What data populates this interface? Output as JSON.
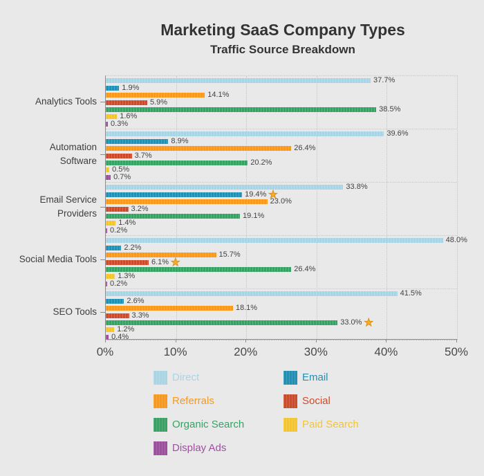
{
  "chart_data": {
    "type": "bar",
    "orientation": "horizontal",
    "title": "Marketing SaaS Company Types",
    "subtitle": "Traffic Source Breakdown",
    "xlim": [
      0,
      50
    ],
    "xmax": 50,
    "x_tick_labels": [
      "0%",
      "10%",
      "20%",
      "30%",
      "40%",
      "50%"
    ],
    "grid": "dotted",
    "legend_position": "bottom",
    "star_glyph": "★",
    "star_color": "#f4b223",
    "background_color": "#e9e9e9",
    "axis_color": "#8c8c8c",
    "series": [
      {
        "name": "Direct",
        "color": "#a9d4e4"
      },
      {
        "name": "Email",
        "color": "#2190b4"
      },
      {
        "name": "Referrals",
        "color": "#f8981d"
      },
      {
        "name": "Social",
        "color": "#cd4b2d"
      },
      {
        "name": "Organic Search",
        "color": "#38a164"
      },
      {
        "name": "Paid Search",
        "color": "#f4c52c"
      },
      {
        "name": "Display Ads",
        "color": "#9c4f9f"
      }
    ],
    "groups": [
      {
        "label": "Analytics Tools",
        "values": [
          37.7,
          1.9,
          14.1,
          5.9,
          38.5,
          1.6,
          0.3
        ],
        "labels": [
          "37.7%",
          "1.9%",
          "14.1%",
          "5.9%",
          "38.5%",
          "1.6%",
          "0.3%"
        ],
        "starred": []
      },
      {
        "label": "Automation\nSoftware",
        "values": [
          39.6,
          8.9,
          26.4,
          3.7,
          20.2,
          0.5,
          0.7
        ],
        "labels": [
          "39.6%",
          "8.9%",
          "26.4%",
          "3.7%",
          "20.2%",
          "0.5%",
          "0.7%"
        ],
        "starred": []
      },
      {
        "label": "Email Service\nProviders",
        "values": [
          33.8,
          19.4,
          23.0,
          3.2,
          19.1,
          1.4,
          0.2
        ],
        "labels": [
          "33.8%",
          "19.4%",
          "23.0%",
          "3.2%",
          "19.1%",
          "1.4%",
          "0.2%"
        ],
        "starred": [
          1
        ]
      },
      {
        "label": "Social Media Tools",
        "values": [
          48.0,
          2.2,
          15.7,
          6.1,
          26.4,
          1.3,
          0.2
        ],
        "labels": [
          "48.0%",
          "2.2%",
          "15.7%",
          "6.1%",
          "26.4%",
          "1.3%",
          "0.2%"
        ],
        "starred": [
          3
        ]
      },
      {
        "label": "SEO Tools",
        "values": [
          41.5,
          2.6,
          18.1,
          3.3,
          33.0,
          1.2,
          0.4
        ],
        "labels": [
          "41.5%",
          "2.6%",
          "18.1%",
          "3.3%",
          "33.0%",
          "1.2%",
          "0.4%"
        ],
        "starred": [
          4
        ]
      }
    ]
  }
}
